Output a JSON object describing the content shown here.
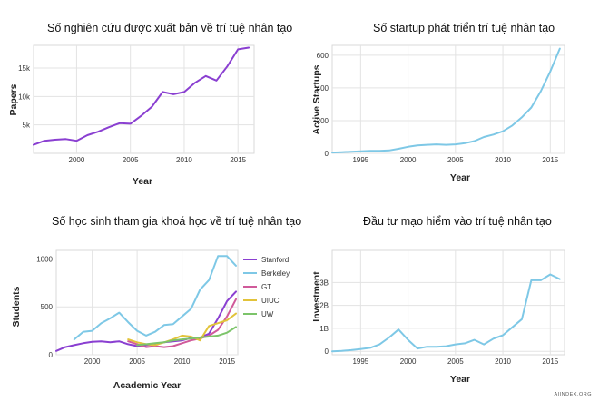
{
  "chart_data": [
    {
      "type": "line",
      "title": "Số nghiên cứu được xuất bản về trí tuệ nhân tạo",
      "xlabel": "Year",
      "ylabel": "Papers",
      "xlim": [
        1996,
        2016.5
      ],
      "ylim": [
        0,
        19000
      ],
      "xticks": [
        2000,
        2005,
        2010,
        2015
      ],
      "yticks": [
        5000,
        10000,
        15000
      ],
      "ytick_labels": [
        "5k",
        "10k",
        "15k"
      ],
      "grid": true,
      "series": [
        {
          "color": "#8a3fd1",
          "x": [
            1996,
            1997,
            1998,
            1999,
            2000,
            2001,
            2002,
            2003,
            2004,
            2005,
            2006,
            2007,
            2008,
            2009,
            2010,
            2011,
            2012,
            2013,
            2014,
            2015,
            2016
          ],
          "y": [
            1500,
            2200,
            2400,
            2500,
            2200,
            3200,
            3800,
            4600,
            5300,
            5200,
            6600,
            8200,
            10800,
            10400,
            10800,
            12400,
            13600,
            12800,
            15300,
            18300,
            18600
          ]
        }
      ]
    },
    {
      "type": "line",
      "title": "Số startup phát triển trí tuệ nhân tạo",
      "xlabel": "Year",
      "ylabel": "Active Startups",
      "xlim": [
        1992,
        2016.5
      ],
      "ylim": [
        0,
        660
      ],
      "xticks": [
        1995,
        2000,
        2005,
        2010,
        2015
      ],
      "yticks": [
        0,
        200,
        400,
        600
      ],
      "grid": true,
      "series": [
        {
          "color": "#7ec8e6",
          "x": [
            1992,
            1993,
            1994,
            1995,
            1996,
            1997,
            1998,
            1999,
            2000,
            2001,
            2002,
            2003,
            2004,
            2005,
            2006,
            2007,
            2008,
            2009,
            2010,
            2011,
            2012,
            2013,
            2014,
            2015,
            2016
          ],
          "y": [
            5,
            7,
            10,
            12,
            15,
            15,
            18,
            28,
            40,
            48,
            52,
            55,
            52,
            55,
            62,
            75,
            100,
            115,
            135,
            170,
            220,
            280,
            380,
            500,
            640
          ]
        }
      ]
    },
    {
      "type": "line",
      "title": "Số học sinh tham gia khoá học về trí tuệ nhân tạo",
      "xlabel": "Academic Year",
      "ylabel": "Students",
      "xlim": [
        1996,
        2016.2
      ],
      "ylim": [
        0,
        1090
      ],
      "xticks": [
        2000,
        2005,
        2010,
        2015
      ],
      "yticks": [
        0,
        500,
        1000
      ],
      "grid": true,
      "legend": "right",
      "series": [
        {
          "name": "Stanford",
          "color": "#8a3fd1",
          "x": [
            1996,
            1997,
            1998,
            1999,
            2000,
            2001,
            2002,
            2003,
            2004,
            2005,
            2006,
            2007,
            2008,
            2009,
            2010,
            2011,
            2012,
            2013,
            2014,
            2015,
            2016
          ],
          "y": [
            40,
            80,
            100,
            120,
            135,
            140,
            130,
            140,
            110,
            90,
            100,
            110,
            130,
            140,
            150,
            175,
            180,
            220,
            380,
            560,
            660
          ]
        },
        {
          "name": "Berkeley",
          "color": "#7ec8e6",
          "x": [
            1998,
            1999,
            2000,
            2001,
            2002,
            2003,
            2004,
            2005,
            2006,
            2007,
            2008,
            2009,
            2010,
            2011,
            2012,
            2013,
            2014,
            2015,
            2016
          ],
          "y": [
            160,
            240,
            250,
            330,
            380,
            440,
            340,
            250,
            200,
            240,
            310,
            320,
            400,
            480,
            680,
            780,
            1030,
            1030,
            930
          ]
        },
        {
          "name": "GT",
          "color": "#d05a9a",
          "x": [
            2004,
            2005,
            2006,
            2007,
            2008,
            2009,
            2010,
            2011,
            2012,
            2013,
            2014,
            2015,
            2016
          ],
          "y": [
            140,
            110,
            80,
            90,
            80,
            90,
            120,
            150,
            170,
            200,
            260,
            400,
            580
          ]
        },
        {
          "name": "UIUC",
          "color": "#e2c33a",
          "x": [
            2004,
            2005,
            2006,
            2007,
            2008,
            2009,
            2010,
            2011,
            2012,
            2013,
            2014,
            2015,
            2016
          ],
          "y": [
            160,
            130,
            110,
            100,
            130,
            160,
            200,
            190,
            150,
            300,
            330,
            360,
            430
          ]
        },
        {
          "name": "UW",
          "color": "#7cc46a",
          "x": [
            2005,
            2006,
            2007,
            2008,
            2009,
            2010,
            2011,
            2012,
            2013,
            2014,
            2015,
            2016
          ],
          "y": [
            100,
            110,
            120,
            130,
            150,
            160,
            170,
            180,
            190,
            200,
            230,
            290
          ]
        }
      ]
    },
    {
      "type": "line",
      "title": "Đầu tư mạo hiểm vào trí tuệ nhân tạo",
      "xlabel": "Year",
      "ylabel": "Investment",
      "xlim": [
        1992,
        2016.5
      ],
      "ylim": [
        -0.15,
        4.4
      ],
      "xticks": [
        1995,
        2000,
        2005,
        2010,
        2015
      ],
      "yticks": [
        0,
        1,
        2,
        3
      ],
      "ytick_labels": [
        "0",
        "1B",
        "2B",
        "3B"
      ],
      "grid": true,
      "series": [
        {
          "color": "#7ec8e6",
          "x": [
            1992,
            1993,
            1994,
            1995,
            1996,
            1997,
            1998,
            1999,
            2000,
            2001,
            2002,
            2003,
            2004,
            2005,
            2006,
            2007,
            2008,
            2009,
            2010,
            2011,
            2012,
            2013,
            2014,
            2015,
            2016
          ],
          "y": [
            0,
            0.02,
            0.05,
            0.1,
            0.15,
            0.3,
            0.6,
            0.95,
            0.5,
            0.12,
            0.2,
            0.2,
            0.22,
            0.3,
            0.35,
            0.5,
            0.3,
            0.55,
            0.7,
            1.05,
            1.4,
            3.1,
            3.1,
            3.35,
            3.15
          ]
        }
      ]
    }
  ],
  "watermark": "AIINDEX.ORG"
}
